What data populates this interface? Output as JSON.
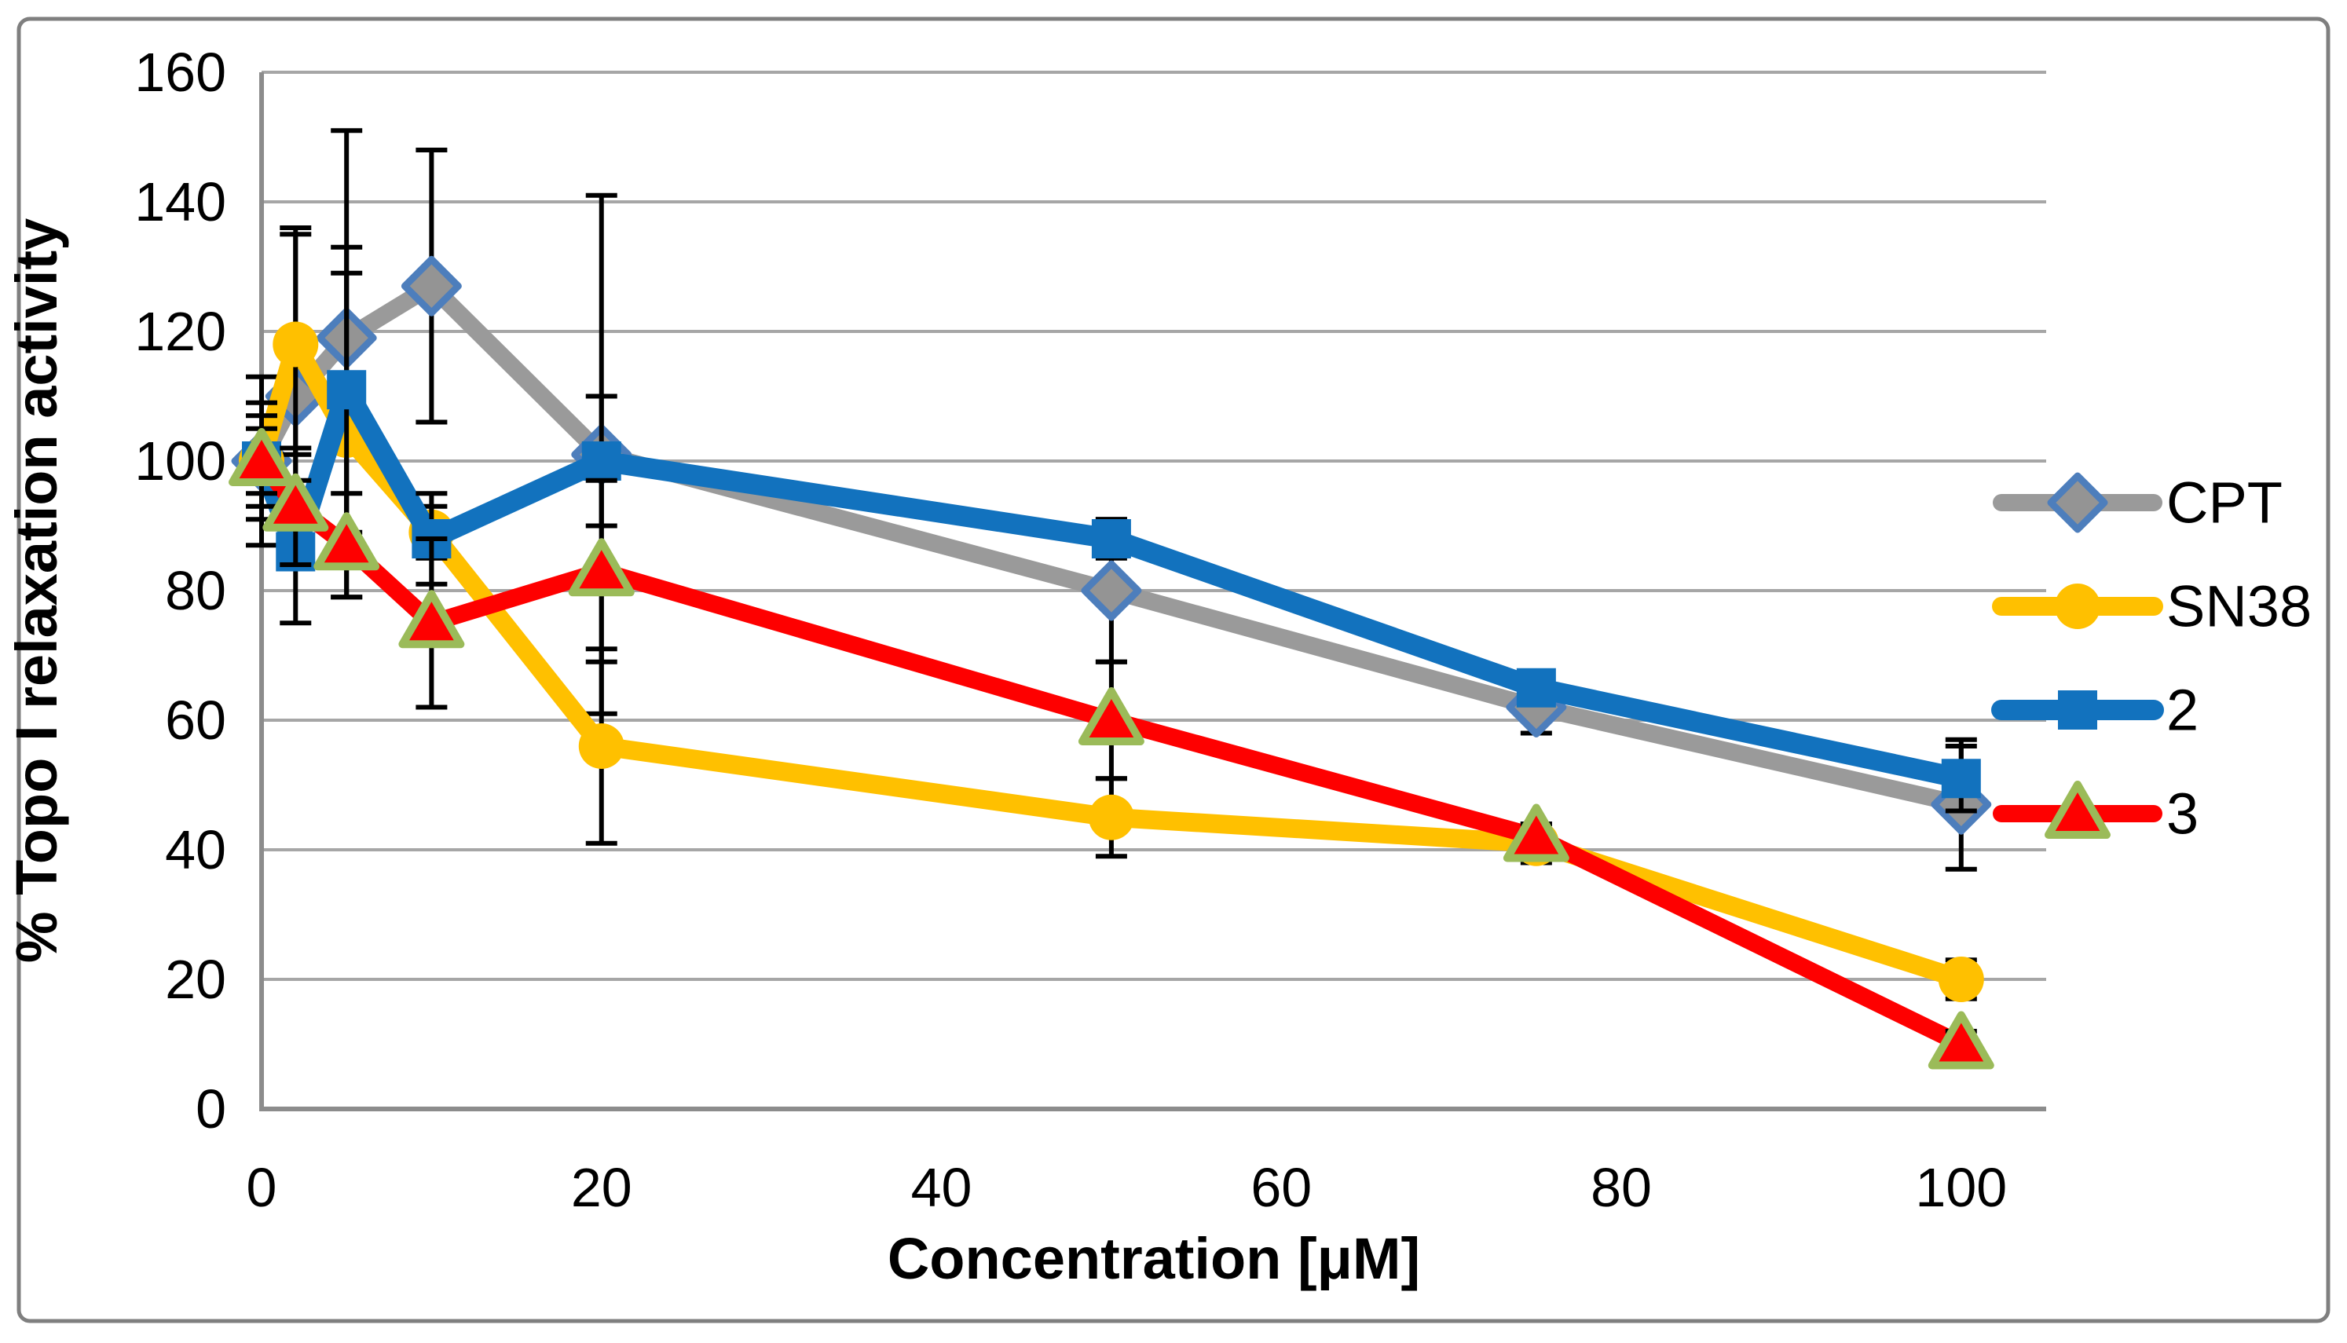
{
  "chart_data": {
    "type": "line",
    "title": "",
    "xlabel": "Concentration [μM]",
    "ylabel": "% Topo I relaxation activity",
    "x": [
      0,
      2,
      5,
      10,
      20,
      50,
      75,
      100
    ],
    "xlim": [
      0,
      105
    ],
    "ylim": [
      0,
      160
    ],
    "ytick_step": 20,
    "yticks": [
      0,
      20,
      40,
      60,
      80,
      100,
      120,
      140,
      160
    ],
    "xticks": [
      0,
      20,
      40,
      60,
      80,
      100
    ],
    "grid": "horizontal",
    "legend_position": "right",
    "has_error_bars": true,
    "error_bar_color": "#000000",
    "grid_color": "#A6A6A6",
    "axis_color": "#8C8C8C",
    "frame_color": "#7F7F7F",
    "series": [
      {
        "name": "CPT",
        "color": "#9A9A9A",
        "marker": "diamond",
        "marker_fill": "#949494",
        "marker_stroke": "#4D7EBC",
        "line_width": 22,
        "values": [
          100,
          110,
          119,
          127,
          101,
          80,
          62,
          47
        ],
        "errors": [
          13,
          26,
          32,
          21,
          40,
          11,
          4,
          10
        ]
      },
      {
        "name": "SN38",
        "color": "#FFC000",
        "marker": "circle",
        "marker_fill": "#FFC000",
        "marker_stroke": "none",
        "line_width": 24,
        "values": [
          100,
          118,
          104,
          89,
          56,
          45,
          41,
          20
        ],
        "errors": [
          9,
          17,
          25,
          4,
          15,
          6,
          3,
          3
        ]
      },
      {
        "name": "2",
        "color": "#1272BE",
        "marker": "square",
        "marker_fill": "#1272BE",
        "marker_stroke": "none",
        "line_width": 26,
        "values": [
          100,
          86,
          111,
          88,
          100,
          88,
          65,
          51
        ],
        "errors": [
          7,
          11,
          22,
          7,
          10,
          3,
          2,
          5
        ]
      },
      {
        "name": "3",
        "color": "#FE0000",
        "marker": "triangle",
        "marker_fill": "#FE0000",
        "marker_stroke": "#9BBB59",
        "line_width": 22,
        "values": [
          100,
          93,
          87,
          75,
          83,
          60,
          42,
          10
        ],
        "errors": [
          5,
          9,
          8,
          13,
          14,
          9,
          2,
          2
        ]
      }
    ]
  }
}
